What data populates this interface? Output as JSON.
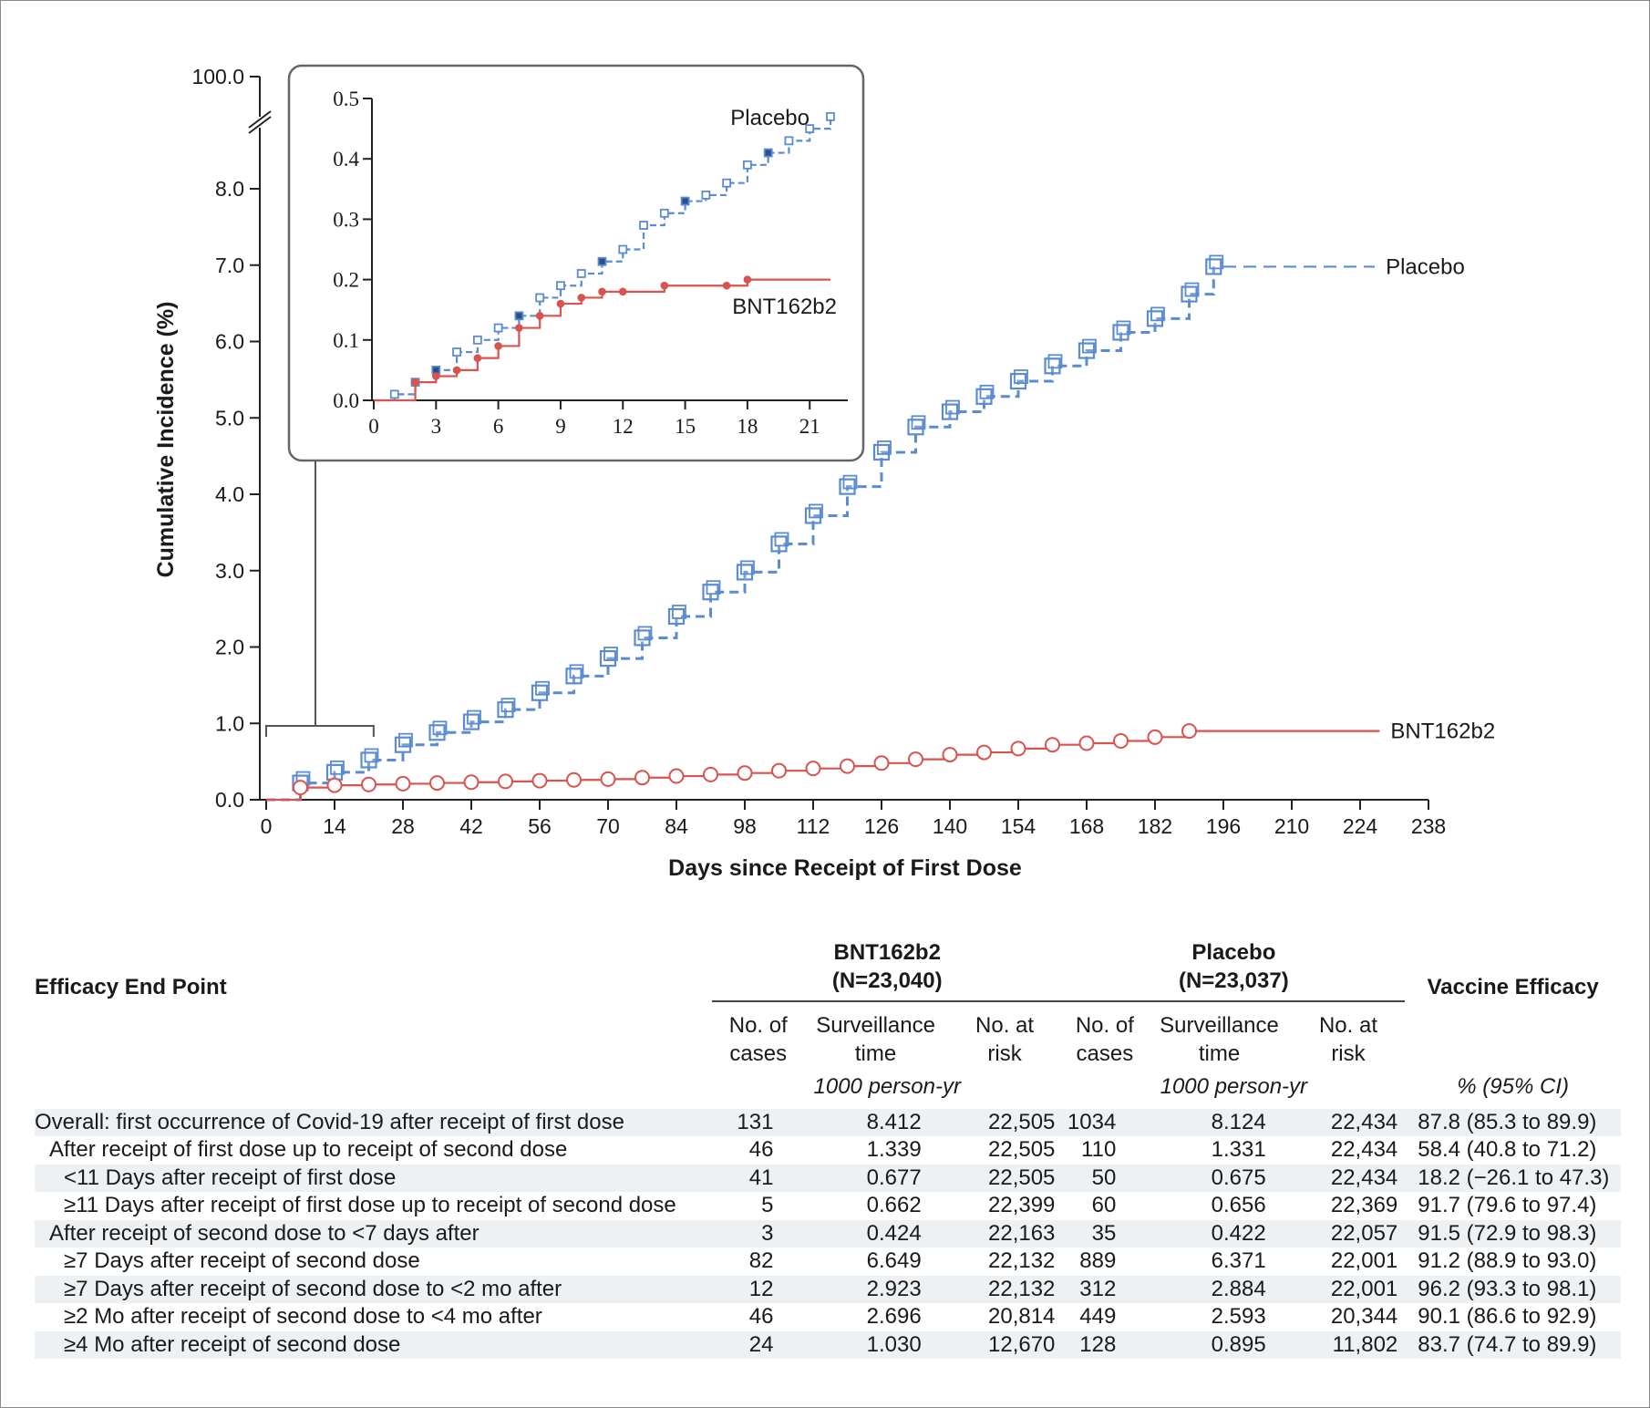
{
  "chart_data": {
    "type": "line",
    "title": "",
    "xlabel": "Days since Receipt of First Dose",
    "ylabel": "Cumulative Incidence (%)",
    "x_ticks": [
      0,
      14,
      28,
      42,
      56,
      70,
      84,
      98,
      112,
      126,
      140,
      154,
      168,
      182,
      196,
      210,
      224,
      238
    ],
    "y_ticks": [
      "0.0",
      "1.0",
      "2.0",
      "3.0",
      "4.0",
      "5.0",
      "6.0",
      "7.0",
      "8.0"
    ],
    "y_break_label": "100.0",
    "xlim": [
      0,
      238
    ],
    "ylim": [
      0,
      8.0
    ],
    "series": [
      {
        "name": "Placebo",
        "color": "#5b8bd0",
        "line_style": "dashed",
        "x": [
          0,
          7,
          14,
          21,
          28,
          35,
          42,
          49,
          56,
          63,
          70,
          77,
          84,
          91,
          98,
          105,
          112,
          119,
          126,
          133,
          140,
          147,
          154,
          161,
          168,
          175,
          182,
          189,
          194
        ],
        "y": [
          0.0,
          0.22,
          0.36,
          0.52,
          0.72,
          0.88,
          1.02,
          1.18,
          1.4,
          1.62,
          1.85,
          2.12,
          2.4,
          2.72,
          2.98,
          3.35,
          3.72,
          4.1,
          4.55,
          4.88,
          5.08,
          5.28,
          5.48,
          5.68,
          5.88,
          6.12,
          6.3,
          6.62,
          6.98
        ],
        "extension_x": [
          196,
          227
        ]
      },
      {
        "name": "BNT162b2",
        "color": "#d9534f",
        "line_style": "solid",
        "x": [
          0,
          7,
          14,
          21,
          28,
          35,
          42,
          49,
          56,
          63,
          70,
          77,
          84,
          91,
          98,
          105,
          112,
          119,
          126,
          133,
          140,
          147,
          154,
          161,
          168,
          175,
          182,
          189
        ],
        "y": [
          0.0,
          0.16,
          0.19,
          0.2,
          0.21,
          0.22,
          0.23,
          0.24,
          0.25,
          0.26,
          0.27,
          0.29,
          0.31,
          0.33,
          0.35,
          0.38,
          0.41,
          0.44,
          0.48,
          0.53,
          0.59,
          0.62,
          0.67,
          0.72,
          0.74,
          0.77,
          0.82,
          0.9
        ],
        "extension_x": [
          189,
          228
        ]
      }
    ],
    "inset": {
      "x_ticks": [
        0,
        3,
        6,
        9,
        12,
        15,
        18,
        21
      ],
      "y_ticks": [
        "0.0",
        "0.1",
        "0.2",
        "0.3",
        "0.4",
        "0.5"
      ],
      "xlim": [
        0,
        22
      ],
      "ylim": [
        0,
        0.5
      ],
      "series": [
        {
          "name": "Placebo",
          "color": "#5b8bd0",
          "line_style": "dashed",
          "x": [
            0,
            1,
            2,
            3,
            4,
            5,
            6,
            7,
            8,
            9,
            10,
            11,
            12,
            13,
            14,
            15,
            16,
            17,
            18,
            19,
            20,
            21,
            22
          ],
          "y": [
            0.0,
            0.01,
            0.03,
            0.05,
            0.08,
            0.1,
            0.12,
            0.14,
            0.17,
            0.19,
            0.21,
            0.23,
            0.25,
            0.29,
            0.31,
            0.33,
            0.34,
            0.36,
            0.39,
            0.41,
            0.43,
            0.45,
            0.47
          ]
        },
        {
          "name": "BNT162b2",
          "color": "#d9534f",
          "line_style": "solid",
          "x": [
            0,
            2,
            3,
            4,
            5,
            6,
            7,
            8,
            9,
            10,
            11,
            12,
            14,
            17,
            18,
            22
          ],
          "y": [
            0.0,
            0.03,
            0.04,
            0.05,
            0.07,
            0.09,
            0.12,
            0.14,
            0.16,
            0.17,
            0.18,
            0.18,
            0.19,
            0.19,
            0.2,
            0.2
          ]
        }
      ]
    }
  },
  "table": {
    "endpoint_header": "Efficacy End Point",
    "groups": [
      {
        "name": "BNT162b2",
        "n": "(N=23,040)"
      },
      {
        "name": "Placebo",
        "n": "(N=23,037)"
      }
    ],
    "efficacy_header": "Vaccine Efficacy",
    "col_cases": [
      "No. of",
      "cases"
    ],
    "col_time": [
      "Surveillance",
      "time"
    ],
    "col_risk": [
      "No. at",
      "risk"
    ],
    "time_unit": "1000 person-yr",
    "efficacy_unit": "% (95% CI)",
    "rows": [
      {
        "label": "Overall: first occurrence of Covid-19 after receipt of first dose",
        "indent": 0,
        "v_cases": "131",
        "v_time": "8.412",
        "v_risk": "22,505",
        "p_cases": "1034",
        "p_time": "8.124",
        "p_risk": "22,434",
        "ve": "87.8 (85.3 to 89.9)"
      },
      {
        "label": "After receipt of first dose up to receipt of second dose",
        "indent": 1,
        "v_cases": "46",
        "v_time": "1.339",
        "v_risk": "22,505",
        "p_cases": "110",
        "p_time": "1.331",
        "p_risk": "22,434",
        "ve": "58.4 (40.8 to 71.2)"
      },
      {
        "label": "<11 Days after receipt of first dose",
        "indent": 2,
        "v_cases": "41",
        "v_time": "0.677",
        "v_risk": "22,505",
        "p_cases": "50",
        "p_time": "0.675",
        "p_risk": "22,434",
        "ve": "18.2 (−26.1 to 47.3)"
      },
      {
        "label": "≥11 Days after receipt of first dose up to receipt of second dose",
        "indent": 2,
        "v_cases": "5",
        "v_time": "0.662",
        "v_risk": "22,399",
        "p_cases": "60",
        "p_time": "0.656",
        "p_risk": "22,369",
        "ve": "91.7 (79.6 to 97.4)"
      },
      {
        "label": "After receipt of second dose to <7 days after",
        "indent": 1,
        "v_cases": "3",
        "v_time": "0.424",
        "v_risk": "22,163",
        "p_cases": "35",
        "p_time": "0.422",
        "p_risk": "22,057",
        "ve": "91.5 (72.9 to 98.3)"
      },
      {
        "label": "≥7 Days after receipt of second dose",
        "indent": 2,
        "v_cases": "82",
        "v_time": "6.649",
        "v_risk": "22,132",
        "p_cases": "889",
        "p_time": "6.371",
        "p_risk": "22,001",
        "ve": "91.2 (88.9 to 93.0)"
      },
      {
        "label": "≥7 Days after receipt of second dose to <2 mo after",
        "indent": 2,
        "v_cases": "12",
        "v_time": "2.923",
        "v_risk": "22,132",
        "p_cases": "312",
        "p_time": "2.884",
        "p_risk": "22,001",
        "ve": "96.2 (93.3 to 98.1)"
      },
      {
        "label": "≥2 Mo after receipt of second dose to <4 mo after",
        "indent": 2,
        "v_cases": "46",
        "v_time": "2.696",
        "v_risk": "20,814",
        "p_cases": "449",
        "p_time": "2.593",
        "p_risk": "20,344",
        "ve": "90.1 (86.6 to 92.9)"
      },
      {
        "label": "≥4 Mo after receipt of second dose",
        "indent": 2,
        "v_cases": "24",
        "v_time": "1.030",
        "v_risk": "12,670",
        "p_cases": "128",
        "p_time": "0.895",
        "p_risk": "11,802",
        "ve": "83.7 (74.7 to 89.9)"
      }
    ]
  }
}
